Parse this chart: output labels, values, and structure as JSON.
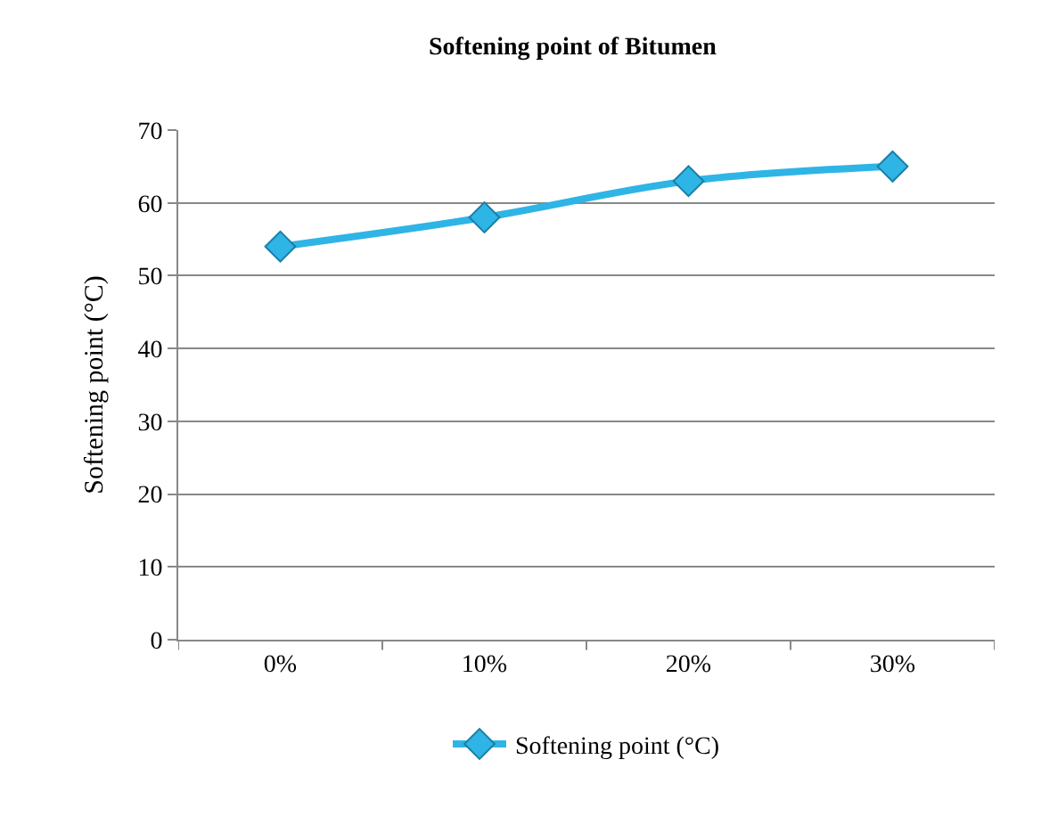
{
  "chart_data": {
    "type": "line",
    "title": "Softening point of Bitumen",
    "ylabel": "Softening point (°C)",
    "categories": [
      "0%",
      "10%",
      "20%",
      "30%"
    ],
    "series": [
      {
        "name": "Softening point (°C)",
        "color": "#2fb4e6",
        "values": [
          54,
          58,
          63,
          65
        ]
      }
    ],
    "ylim": [
      0,
      70
    ],
    "yticks": [
      0,
      10,
      20,
      30,
      40,
      50,
      60,
      70
    ],
    "grid": "y",
    "legend": "bottom",
    "marker": "diamond",
    "line_style": "solid"
  }
}
